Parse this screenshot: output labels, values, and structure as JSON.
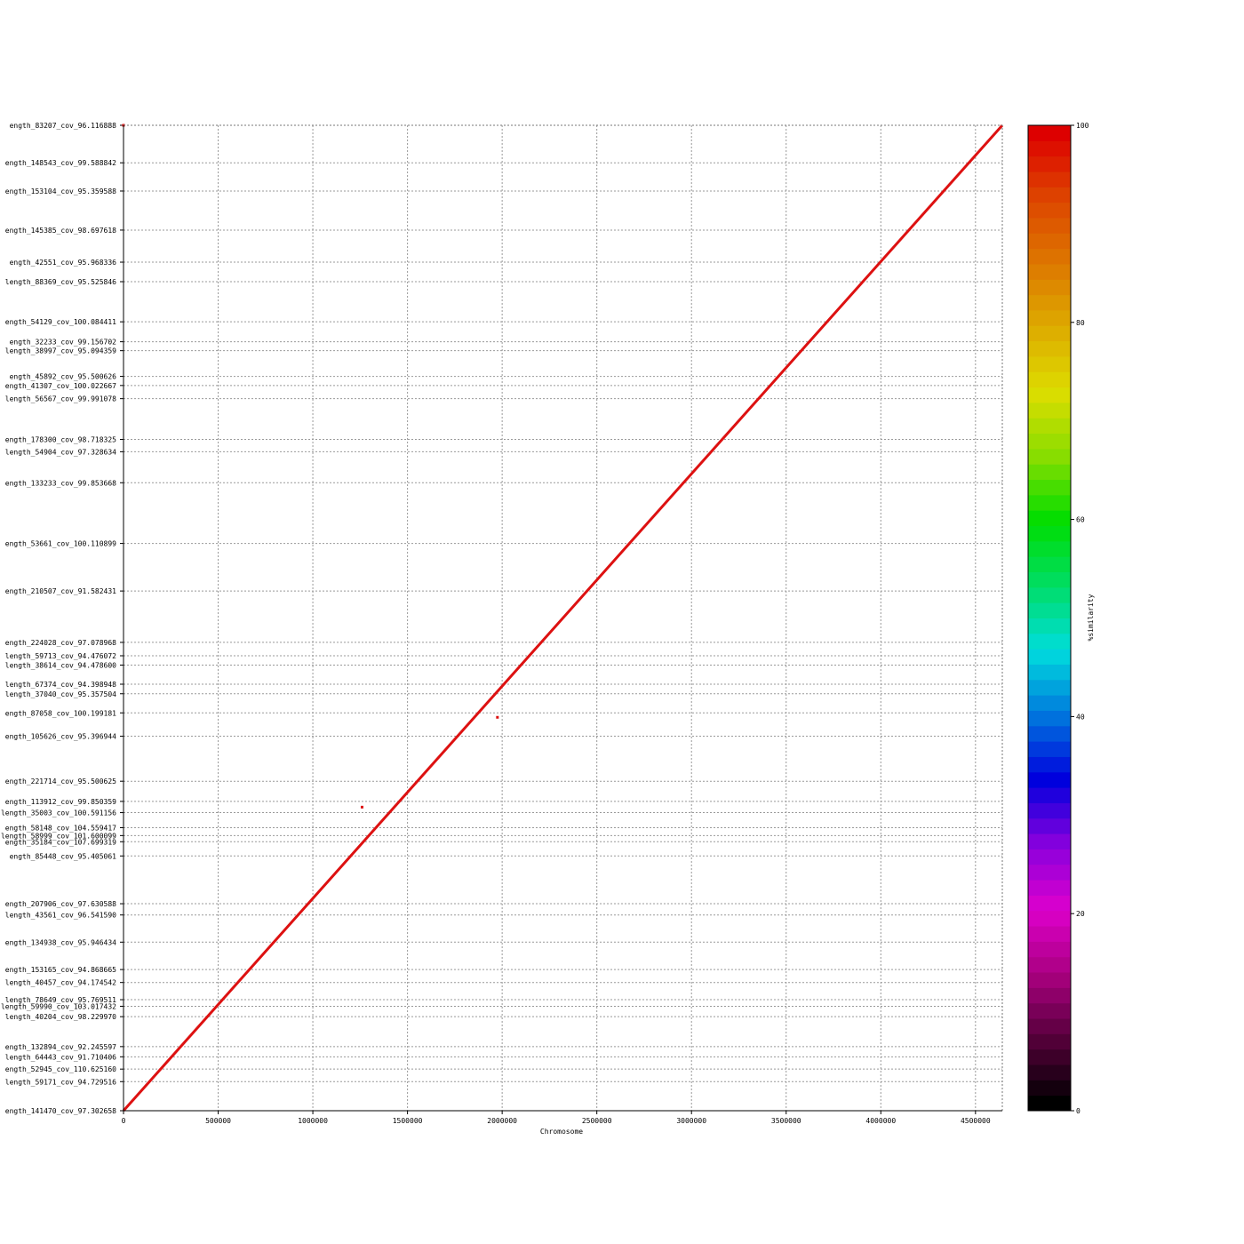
{
  "chart_data": {
    "type": "scatter",
    "title": "",
    "xlabel": "Chromosome",
    "ylabel": "",
    "xlim": [
      0,
      4641652
    ],
    "ylim": [
      0,
      4641652
    ],
    "grid": true,
    "x_ticks": [
      0,
      500000,
      1000000,
      1500000,
      2000000,
      2500000,
      3000000,
      3500000,
      4000000,
      4500000
    ],
    "x_tick_labels": [
      "0",
      "500000",
      "1000000",
      "1500000",
      "2000000",
      "2500000",
      "3000000",
      "3500000",
      "4000000",
      "4500000"
    ],
    "y_ticks": [
      {
        "value": 4641652,
        "label": "ength_83207_cov_96.116888"
      },
      {
        "value": 4465000,
        "label": "ength_148543_cov_99.588842"
      },
      {
        "value": 4332000,
        "label": "ength_153104_cov_95.359588"
      },
      {
        "value": 4148000,
        "label": "ength_145385_cov_98.697618"
      },
      {
        "value": 3997000,
        "label": "ength_42551_cov_95.968336"
      },
      {
        "value": 3905000,
        "label": "length_88369_cov_95.525846"
      },
      {
        "value": 3716000,
        "label": "ength_54129_cov_100.084411"
      },
      {
        "value": 3622000,
        "label": "ength_32233_cov_99.156702"
      },
      {
        "value": 3580000,
        "label": "length_38997_cov_95.094359"
      },
      {
        "value": 3459000,
        "label": "ength_45892_cov_95.500626"
      },
      {
        "value": 3416000,
        "label": "ength_41307_cov_100.022667"
      },
      {
        "value": 3354000,
        "label": "length_56567_cov_99.991078"
      },
      {
        "value": 3162000,
        "label": "ength_178300_cov_98.718325"
      },
      {
        "value": 3104000,
        "label": "length_54904_cov_97.328634"
      },
      {
        "value": 2958000,
        "label": "ength_133233_cov_99.853668"
      },
      {
        "value": 2672000,
        "label": "ength_53661_cov_100.110899"
      },
      {
        "value": 2448000,
        "label": "ength_210507_cov_91.582431"
      },
      {
        "value": 2206000,
        "label": "ength_224028_cov_97.078968"
      },
      {
        "value": 2143000,
        "label": "length_59713_cov_94.476072"
      },
      {
        "value": 2099000,
        "label": "length_38614_cov_94.478600"
      },
      {
        "value": 2009000,
        "label": "length_67374_cov_94.398948"
      },
      {
        "value": 1964000,
        "label": "length_37040_cov_95.357504"
      },
      {
        "value": 1874000,
        "label": "ength_87058_cov_100.199181"
      },
      {
        "value": 1764000,
        "label": "ength_105626_cov_95.396944"
      },
      {
        "value": 1552000,
        "label": "ength_221714_cov_95.500625"
      },
      {
        "value": 1457000,
        "label": "ength_113912_cov_99.850359"
      },
      {
        "value": 1404000,
        "label": "length_35003_cov_100.591156"
      },
      {
        "value": 1333000,
        "label": "ength_58148_cov_104.559417"
      },
      {
        "value": 1296000,
        "label": "length_58999_cov_101.600099"
      },
      {
        "value": 1267000,
        "label": "ength_35184_cov_107.699319"
      },
      {
        "value": 1200000,
        "label": "ength_85448_cov_95.405061"
      },
      {
        "value": 975000,
        "label": "ength_207906_cov_97.630588"
      },
      {
        "value": 922000,
        "label": "length_43561_cov_96.541590"
      },
      {
        "value": 794000,
        "label": "ength_134938_cov_95.946434"
      },
      {
        "value": 665000,
        "label": "ength_153165_cov_94.868665"
      },
      {
        "value": 604000,
        "label": "length_40457_cov_94.174542"
      },
      {
        "value": 523000,
        "label": "length_78649_cov_95.769511"
      },
      {
        "value": 492000,
        "label": "length_59990_cov_103.017432"
      },
      {
        "value": 443000,
        "label": "length_40204_cov_98.229970"
      },
      {
        "value": 302000,
        "label": "ength_132894_cov_92.245597"
      },
      {
        "value": 254000,
        "label": "length_64443_cov_91.710406"
      },
      {
        "value": 196000,
        "label": "ength_52945_cov_110.625160"
      },
      {
        "value": 137000,
        "label": "length_59171_cov_94.729516"
      },
      {
        "value": 0,
        "label": "ength_141470_cov_97.302658"
      }
    ],
    "series": [
      {
        "x": [
          0,
          4641652
        ],
        "y": [
          0,
          4641652
        ],
        "similarity": 100
      }
    ],
    "outliers": [
      {
        "x": 0,
        "y": 4641652
      },
      {
        "x": 1260000,
        "y": 1430000
      },
      {
        "x": 1975000,
        "y": 1853000
      }
    ]
  },
  "colorbar": {
    "label": "%similarity",
    "ticks": [
      "0",
      "20",
      "40",
      "60",
      "80",
      "100"
    ],
    "range": [
      0,
      100
    ],
    "colors": [
      "#000000",
      "#55003a",
      "#aa0080",
      "#dd00cc",
      "#8800dd",
      "#0000dd",
      "#0077dd",
      "#00dddd",
      "#00dd66",
      "#00dd00",
      "#88dd00",
      "#dddd00",
      "#ddaa00",
      "#dd7700",
      "#dd4400",
      "#dd0000"
    ]
  },
  "colors": {
    "alignment": "#dd1111",
    "grid": "#999999",
    "axis": "#000000"
  }
}
